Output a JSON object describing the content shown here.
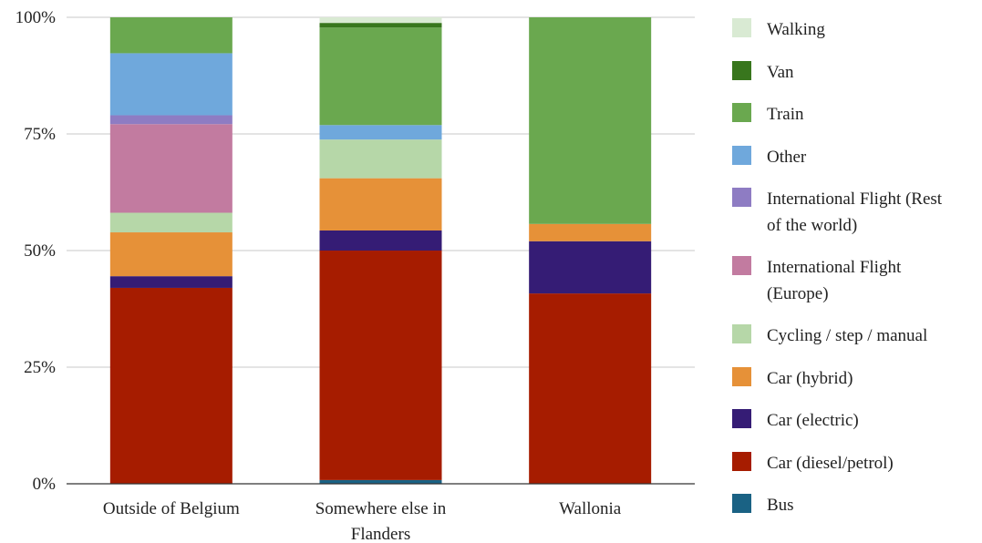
{
  "chart_data": {
    "type": "bar",
    "stacked": true,
    "percent": true,
    "categories": [
      "Outside of Belgium",
      "Somewhere else in Flanders",
      "Wallonia"
    ],
    "category_lines": [
      [
        "Outside of Belgium"
      ],
      [
        "Somewhere else in",
        "Flanders"
      ],
      [
        "Wallonia"
      ]
    ],
    "y_ticks": [
      "0%",
      "25%",
      "50%",
      "75%",
      "100%"
    ],
    "ylim": [
      0,
      100
    ],
    "grid": true,
    "legend_position": "right",
    "series": [
      {
        "name": "Bus",
        "color": "#1a6284",
        "values": [
          0,
          0.8,
          0
        ]
      },
      {
        "name": "Car (diesel/petrol)",
        "color": "#a61c00",
        "values": [
          42,
          49.2,
          40.8
        ]
      },
      {
        "name": "Car (electric)",
        "color": "#351c75",
        "values": [
          2.5,
          4.3,
          11.2
        ]
      },
      {
        "name": "Car (hybrid)",
        "color": "#e69138",
        "values": [
          9.4,
          11.2,
          3.7
        ]
      },
      {
        "name": "Cycling / step / manual",
        "color": "#b6d7a8",
        "values": [
          4.2,
          8.3,
          0
        ]
      },
      {
        "name": "International Flight (Europe)",
        "color": "#c27ba0",
        "values": [
          19,
          0,
          0
        ]
      },
      {
        "name": "International Flight (Rest of the world)",
        "color": "#8e7cc3",
        "values": [
          1.9,
          0,
          0
        ]
      },
      {
        "name": "Other",
        "color": "#6fa8dc",
        "values": [
          13.3,
          3.1,
          0
        ]
      },
      {
        "name": "Train",
        "color": "#6aa84f",
        "values": [
          7.7,
          20.9,
          44.3
        ]
      },
      {
        "name": "Van",
        "color": "#38761d",
        "values": [
          0,
          1,
          0
        ]
      },
      {
        "name": "Walking",
        "color": "#d9ead3",
        "values": [
          0,
          1.2,
          0
        ]
      }
    ],
    "legend_order": [
      "Walking",
      "Van",
      "Train",
      "Other",
      "International Flight (Rest of the world)",
      "International Flight (Europe)",
      "Cycling / step / manual",
      "Car (hybrid)",
      "Car (electric)",
      "Car (diesel/petrol)",
      "Bus"
    ]
  }
}
